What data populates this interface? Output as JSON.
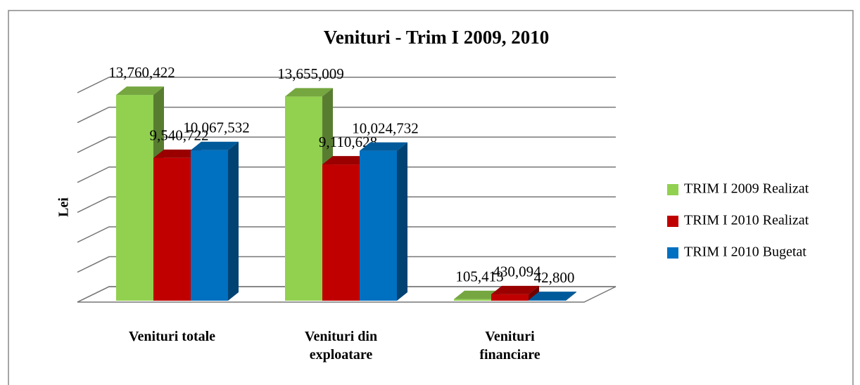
{
  "chart_data": {
    "type": "bar3d",
    "title": "Venituri - Trim I 2009, 2010",
    "ylabel": "Lei",
    "categories": [
      "Venituri totale",
      "Venituri din exploatare",
      "Venituri financiare"
    ],
    "series": [
      {
        "name": "TRIM I 2009 Realizat",
        "color": "#92d050",
        "values": [
          13760422,
          13655009,
          105413
        ],
        "value_labels": [
          "13,760,422",
          "13,655,009",
          "105,413"
        ]
      },
      {
        "name": "TRIM I 2010 Realizat",
        "color": "#c00000",
        "values": [
          9540722,
          9110628,
          430094
        ],
        "value_labels": [
          "9,540,722",
          "9,110,628",
          "430,094"
        ]
      },
      {
        "name": "TRIM I 2010 Bugetat",
        "color": "#0070c0",
        "values": [
          10067532,
          10024732,
          42800
        ],
        "value_labels": [
          "10,067,532",
          "10,024,732",
          "42,800"
        ]
      }
    ],
    "ylim": [
      0,
      14000000
    ],
    "yticks": [
      0,
      2000000,
      4000000,
      6000000,
      8000000,
      10000000,
      12000000,
      14000000
    ],
    "grid": true,
    "legend": "right"
  }
}
